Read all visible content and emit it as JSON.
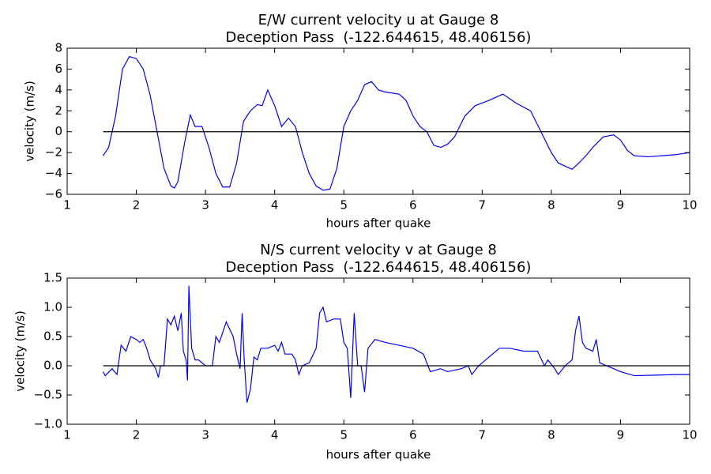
{
  "chart_data": [
    {
      "type": "line",
      "title": "E/W current velocity u at Gauge 8",
      "subtitle": "Deception Pass  (-122.644615, 48.406156)",
      "x_label": "hours after quake",
      "y_label": "velocity (m/s)",
      "xlim": [
        1,
        10
      ],
      "ylim": [
        -6,
        8
      ],
      "xticks": [
        1,
        2,
        3,
        4,
        5,
        6,
        7,
        8,
        9,
        10
      ],
      "yticks": [
        {
          "value": -6,
          "label": "−6"
        },
        {
          "value": -4,
          "label": "−4"
        },
        {
          "value": -2,
          "label": "−2"
        },
        0,
        2,
        4,
        6,
        8
      ],
      "series": [
        {
          "color": "#0000ff",
          "x": [
            1.52,
            1.6,
            1.7,
            1.8,
            1.9,
            2.0,
            2.1,
            2.2,
            2.3,
            2.4,
            2.5,
            2.55,
            2.6,
            2.7,
            2.78,
            2.85,
            2.95,
            3.05,
            3.15,
            3.25,
            3.35,
            3.45,
            3.55,
            3.65,
            3.75,
            3.82,
            3.9,
            4.0,
            4.1,
            4.2,
            4.3,
            4.4,
            4.5,
            4.6,
            4.7,
            4.8,
            4.9,
            5.0,
            5.1,
            5.2,
            5.3,
            5.4,
            5.5,
            5.6,
            5.8,
            5.9,
            6.0,
            6.1,
            6.2,
            6.3,
            6.4,
            6.5,
            6.6,
            6.75,
            6.9,
            7.1,
            7.3,
            7.5,
            7.7,
            7.85,
            8.0,
            8.1,
            8.3,
            8.4,
            8.5,
            8.6,
            8.75,
            8.9,
            9.0,
            9.1,
            9.2,
            9.4,
            9.6,
            9.8,
            10
          ],
          "values": [
            -2.3,
            -1.5,
            1.5,
            6.0,
            7.2,
            7.0,
            6.0,
            3.5,
            0,
            -3.5,
            -5.2,
            -5.4,
            -4.8,
            -1.0,
            1.6,
            0.5,
            0.5,
            -1.5,
            -4.0,
            -5.3,
            -5.3,
            -3.0,
            1.0,
            2.0,
            2.6,
            2.5,
            4.0,
            2.5,
            0.5,
            1.3,
            0.5,
            -2.0,
            -4.0,
            -5.2,
            -5.6,
            -5.5,
            -3.5,
            0.5,
            2.0,
            3.0,
            4.5,
            4.8,
            4.0,
            3.8,
            3.6,
            3.0,
            1.5,
            0.5,
            0,
            -1.3,
            -1.5,
            -1.2,
            -0.5,
            1.5,
            2.5,
            3.0,
            3.6,
            2.7,
            2.0,
            0,
            -2.0,
            -3.0,
            -3.6,
            -3.0,
            -2.3,
            -1.5,
            -0.5,
            -0.3,
            -0.8,
            -1.8,
            -2.3,
            -2.4,
            -2.3,
            -2.2,
            -2.0
          ]
        },
        {
          "color": "#000000",
          "x": [
            1.52,
            10
          ],
          "values": [
            0,
            0
          ]
        }
      ]
    },
    {
      "type": "line",
      "title": "N/S current velocity v at Gauge 8",
      "subtitle": "Deception Pass  (-122.644615, 48.406156)",
      "x_label": "hours after quake",
      "y_label": "velocity (m/s)",
      "xlim": [
        1,
        10
      ],
      "ylim": [
        -1.0,
        1.5
      ],
      "xticks": [
        1,
        2,
        3,
        4,
        5,
        6,
        7,
        8,
        9,
        10
      ],
      "yticks": [
        {
          "value": -1.0,
          "label": "−1.0"
        },
        {
          "value": -0.5,
          "label": "−0.5"
        },
        {
          "value": 0,
          "label": "0.0"
        },
        0.5,
        {
          "value": 1.0,
          "label": "1.0"
        },
        1.5
      ],
      "series": [
        {
          "color": "#0000ff",
          "x": [
            1.52,
            1.55,
            1.65,
            1.72,
            1.78,
            1.85,
            1.92,
            2.0,
            2.05,
            2.1,
            2.15,
            2.2,
            2.28,
            2.32,
            2.35,
            2.4,
            2.45,
            2.5,
            2.55,
            2.6,
            2.65,
            2.68,
            2.72,
            2.74,
            2.76,
            2.8,
            2.85,
            2.9,
            3.0,
            3.1,
            3.15,
            3.2,
            3.3,
            3.4,
            3.45,
            3.5,
            3.53,
            3.56,
            3.6,
            3.65,
            3.7,
            3.75,
            3.8,
            3.9,
            4.0,
            4.05,
            4.1,
            4.15,
            4.25,
            4.3,
            4.35,
            4.4,
            4.5,
            4.6,
            4.65,
            4.7,
            4.75,
            4.85,
            4.95,
            5.0,
            5.05,
            5.1,
            5.15,
            5.2,
            5.25,
            5.3,
            5.35,
            5.45,
            5.6,
            5.8,
            6.0,
            6.15,
            6.25,
            6.4,
            6.5,
            6.7,
            6.8,
            6.85,
            6.95,
            7.05,
            7.15,
            7.25,
            7.4,
            7.6,
            7.8,
            7.9,
            7.95,
            8.05,
            8.1,
            8.2,
            8.3,
            8.35,
            8.4,
            8.45,
            8.5,
            8.6,
            8.65,
            8.7,
            8.8,
            8.9,
            9.0,
            9.2,
            9.5,
            9.8,
            10
          ],
          "values": [
            -0.1,
            -0.17,
            -0.05,
            -0.15,
            0.35,
            0.25,
            0.5,
            0.45,
            0.4,
            0.45,
            0.3,
            0.1,
            -0.05,
            -0.2,
            0.0,
            0.0,
            0.8,
            0.7,
            0.85,
            0.6,
            0.9,
            0.25,
            0.1,
            -0.25,
            1.37,
            0.3,
            0.1,
            0.1,
            0.0,
            0.0,
            0.5,
            0.4,
            0.75,
            0.5,
            0.2,
            -0.05,
            0.9,
            0.1,
            -0.63,
            -0.4,
            0.15,
            0.1,
            0.3,
            0.3,
            0.35,
            0.25,
            0.4,
            0.2,
            0.2,
            0.1,
            -0.15,
            0.0,
            0.05,
            0.3,
            0.9,
            1.0,
            0.75,
            0.8,
            0.8,
            0.4,
            0.3,
            -0.55,
            0.9,
            0.0,
            0.0,
            -0.45,
            0.3,
            0.45,
            0.4,
            0.35,
            0.3,
            0.2,
            -0.1,
            -0.05,
            -0.1,
            -0.05,
            0.0,
            -0.15,
            0.0,
            0.1,
            0.2,
            0.3,
            0.3,
            0.25,
            0.25,
            0.0,
            0.1,
            -0.05,
            -0.15,
            0.0,
            0.1,
            0.6,
            0.85,
            0.4,
            0.3,
            0.25,
            0.45,
            0.05,
            0.0,
            -0.05,
            -0.1,
            -0.17,
            -0.16,
            -0.15,
            -0.15
          ]
        },
        {
          "color": "#000000",
          "x": [
            1.52,
            10
          ],
          "values": [
            0,
            0
          ]
        }
      ]
    }
  ]
}
